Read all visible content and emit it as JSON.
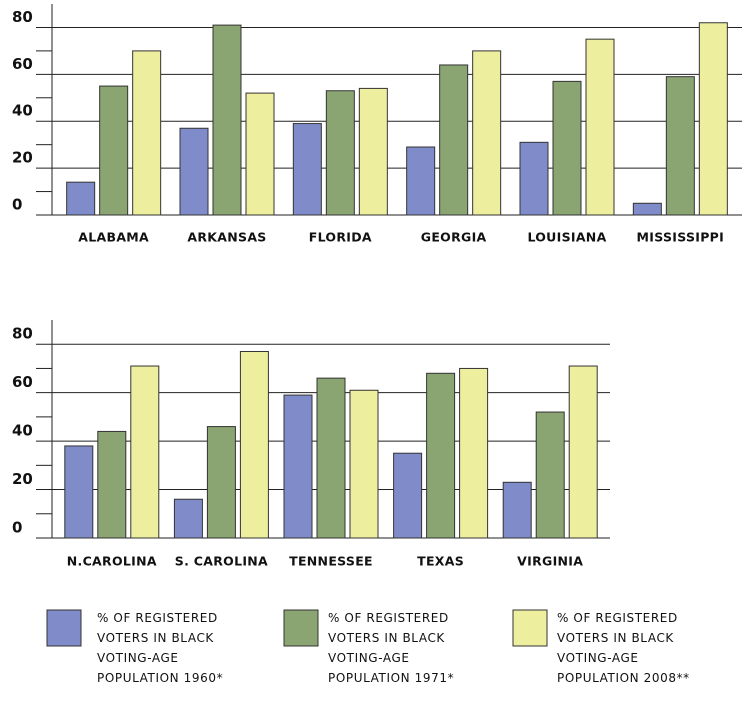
{
  "chart_data": [
    {
      "type": "bar",
      "categories": [
        "ALABAMA",
        "ARKANSAS",
        "FLORIDA",
        "GEORGIA",
        "LOUISIANA",
        "MISSISSIPPI"
      ],
      "series": [
        {
          "name": "% OF REGISTERED VOTERS IN BLACK VOTING-AGE POPULATION 1960*",
          "color": "#7f8cc9",
          "values": [
            14,
            37,
            39,
            29,
            31,
            5
          ]
        },
        {
          "name": "% OF REGISTERED VOTERS IN BLACK VOTING-AGE POPULATION 1971*",
          "color": "#8aa572",
          "values": [
            55,
            81,
            53,
            64,
            57,
            59
          ]
        },
        {
          "name": "% OF REGISTERED VOTERS IN BLACK VOTING-AGE POPULATION 2008**",
          "color": "#eeee9f",
          "values": [
            70,
            52,
            54,
            70,
            75,
            82
          ]
        }
      ],
      "ylim": [
        0,
        90
      ],
      "yticks": [
        0,
        20,
        40,
        60,
        80
      ],
      "minor_yticks": [
        10,
        30,
        50,
        70
      ],
      "grid": true
    },
    {
      "type": "bar",
      "categories": [
        "N.CAROLINA",
        "S. CAROLINA",
        "TENNESSEE",
        "TEXAS",
        "VIRGINIA"
      ],
      "series": [
        {
          "color": "#7f8cc9",
          "values": [
            38,
            16,
            59,
            35,
            23
          ]
        },
        {
          "color": "#8aa572",
          "values": [
            44,
            46,
            66,
            68,
            52
          ]
        },
        {
          "color": "#eeee9f",
          "values": [
            71,
            77,
            61,
            70,
            71
          ]
        }
      ],
      "ylim": [
        0,
        90
      ],
      "yticks": [
        0,
        20,
        40,
        60,
        80
      ],
      "minor_yticks": [
        10,
        30,
        50,
        70
      ],
      "grid": true
    }
  ]
}
